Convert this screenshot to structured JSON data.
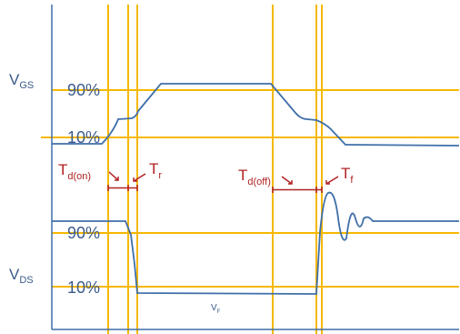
{
  "signals": {
    "vgs": {
      "main": "V",
      "sub": "GS"
    },
    "vds": {
      "main": "V",
      "sub": "DS"
    }
  },
  "levels": {
    "vgs_90": "90%",
    "vgs_10": "10%",
    "vds_90": "90%",
    "vds_10": "10%"
  },
  "timing": {
    "td_on": {
      "main": "T",
      "sub": "d(on)"
    },
    "tr": {
      "main": "T",
      "sub": "r"
    },
    "td_off": {
      "main": "T",
      "sub": "d(off)"
    },
    "tf": {
      "main": "T",
      "sub": "f"
    }
  },
  "annotation": {
    "vf_main": "V",
    "vf_sub": "F"
  },
  "colors": {
    "waveform": "#3f6fa8",
    "guide": "#f5b800",
    "timing": "#b22222",
    "axis": "#3f6fa8"
  }
}
